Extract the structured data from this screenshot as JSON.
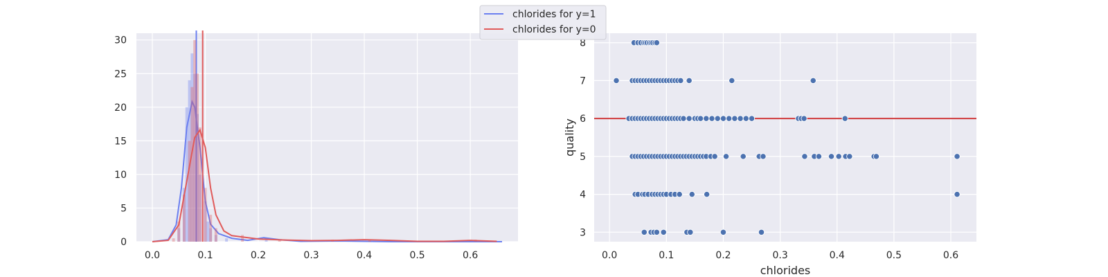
{
  "legend": {
    "placement": "top-center",
    "entries": [
      {
        "label": "chlorides for y=1",
        "color": "#6b7ff0"
      },
      {
        "label": "chlorides for y=0",
        "color": "#e05a5a"
      }
    ]
  },
  "chart_data": [
    {
      "type": "histogram",
      "title": "",
      "xlabel": "",
      "ylabel": "",
      "xlim": [
        -0.03,
        0.69
      ],
      "ylim": [
        0,
        31
      ],
      "xticks": [
        "0.0",
        "0.1",
        "0.2",
        "0.3",
        "0.4",
        "0.5",
        "0.6"
      ],
      "yticks": [
        "0",
        "5",
        "10",
        "15",
        "20",
        "25",
        "30"
      ],
      "grid": true,
      "background": "#eaeaf2",
      "series": [
        {
          "name": "chlorides for y=1",
          "color": "#6b7ff0",
          "mean_line": 0.083,
          "bars": [
            {
              "x": 0.05,
              "y": 2
            },
            {
              "x": 0.06,
              "y": 8
            },
            {
              "x": 0.065,
              "y": 20
            },
            {
              "x": 0.07,
              "y": 24
            },
            {
              "x": 0.075,
              "y": 28
            },
            {
              "x": 0.08,
              "y": 25
            },
            {
              "x": 0.085,
              "y": 19
            },
            {
              "x": 0.09,
              "y": 10
            },
            {
              "x": 0.1,
              "y": 6
            },
            {
              "x": 0.105,
              "y": 3
            },
            {
              "x": 0.11,
              "y": 2
            },
            {
              "x": 0.12,
              "y": 1
            },
            {
              "x": 0.14,
              "y": 0.5
            },
            {
              "x": 0.215,
              "y": 0.4
            }
          ],
          "kde": [
            [
              0.0,
              0
            ],
            [
              0.03,
              0.3
            ],
            [
              0.045,
              2.5
            ],
            [
              0.055,
              8
            ],
            [
              0.065,
              17
            ],
            [
              0.075,
              20.8
            ],
            [
              0.08,
              20
            ],
            [
              0.09,
              14
            ],
            [
              0.1,
              6
            ],
            [
              0.11,
              2.6
            ],
            [
              0.125,
              1.2
            ],
            [
              0.15,
              0.5
            ],
            [
              0.18,
              0.2
            ],
            [
              0.21,
              0.6
            ],
            [
              0.24,
              0.3
            ],
            [
              0.28,
              0.05
            ],
            [
              0.35,
              0.1
            ],
            [
              0.4,
              0.05
            ],
            [
              0.45,
              0
            ],
            [
              0.6,
              0
            ],
            [
              0.66,
              0
            ]
          ]
        },
        {
          "name": "chlorides for y=0",
          "color": "#e05a5a",
          "mean_line": 0.095,
          "bars": [
            {
              "x": 0.04,
              "y": 0.5
            },
            {
              "x": 0.05,
              "y": 3
            },
            {
              "x": 0.06,
              "y": 7
            },
            {
              "x": 0.07,
              "y": 15
            },
            {
              "x": 0.075,
              "y": 23
            },
            {
              "x": 0.08,
              "y": 30
            },
            {
              "x": 0.085,
              "y": 25
            },
            {
              "x": 0.09,
              "y": 17
            },
            {
              "x": 0.1,
              "y": 8
            },
            {
              "x": 0.11,
              "y": 4
            },
            {
              "x": 0.12,
              "y": 2
            },
            {
              "x": 0.17,
              "y": 1
            },
            {
              "x": 0.24,
              "y": 0.3
            },
            {
              "x": 0.34,
              "y": 0.3
            },
            {
              "x": 0.41,
              "y": 0.3
            },
            {
              "x": 0.61,
              "y": 0.3
            }
          ],
          "kde": [
            [
              0.0,
              0
            ],
            [
              0.03,
              0.2
            ],
            [
              0.05,
              2.5
            ],
            [
              0.065,
              9
            ],
            [
              0.08,
              15.5
            ],
            [
              0.09,
              16.6
            ],
            [
              0.1,
              14
            ],
            [
              0.11,
              8
            ],
            [
              0.12,
              4
            ],
            [
              0.135,
              1.6
            ],
            [
              0.15,
              0.9
            ],
            [
              0.17,
              0.7
            ],
            [
              0.2,
              0.4
            ],
            [
              0.25,
              0.25
            ],
            [
              0.3,
              0.15
            ],
            [
              0.35,
              0.2
            ],
            [
              0.4,
              0.3
            ],
            [
              0.45,
              0.2
            ],
            [
              0.5,
              0.05
            ],
            [
              0.55,
              0.05
            ],
            [
              0.6,
              0.2
            ],
            [
              0.65,
              0.05
            ]
          ]
        }
      ]
    },
    {
      "type": "scatter",
      "title": "",
      "xlabel": "chlorides",
      "ylabel": "quality",
      "xlim": [
        -0.027,
        0.645
      ],
      "ylim": [
        2.75,
        8.25
      ],
      "xticks": [
        "0.0",
        "0.1",
        "0.2",
        "0.3",
        "0.4",
        "0.5",
        "0.6"
      ],
      "yticks": [
        "3",
        "4",
        "5",
        "6",
        "7",
        "8"
      ],
      "grid": true,
      "background": "#eaeaf2",
      "point_color": "#4c72b0",
      "hline": {
        "y": 6,
        "color": "#d0393a"
      },
      "points": [
        {
          "quality": 8,
          "x": [
            0.043,
            0.05,
            0.055,
            0.06,
            0.063,
            0.066,
            0.07,
            0.073,
            0.076,
            0.08,
            0.083
          ]
        },
        {
          "quality": 7,
          "x": [
            0.012,
            0.04,
            0.045,
            0.05,
            0.055,
            0.06,
            0.065,
            0.07,
            0.075,
            0.08,
            0.085,
            0.09,
            0.095,
            0.1,
            0.105,
            0.11,
            0.115,
            0.12,
            0.125,
            0.14,
            0.215,
            0.358
          ]
        },
        {
          "quality": 6,
          "x": [
            0.034,
            0.04,
            0.045,
            0.05,
            0.055,
            0.06,
            0.065,
            0.07,
            0.075,
            0.08,
            0.085,
            0.09,
            0.095,
            0.1,
            0.105,
            0.11,
            0.115,
            0.12,
            0.125,
            0.13,
            0.14,
            0.15,
            0.155,
            0.16,
            0.17,
            0.18,
            0.19,
            0.2,
            0.21,
            0.22,
            0.23,
            0.24,
            0.25,
            0.332,
            0.337,
            0.342,
            0.414
          ]
        },
        {
          "quality": 5,
          "x": [
            0.04,
            0.045,
            0.05,
            0.055,
            0.06,
            0.065,
            0.07,
            0.075,
            0.08,
            0.085,
            0.09,
            0.095,
            0.1,
            0.105,
            0.11,
            0.115,
            0.12,
            0.125,
            0.13,
            0.135,
            0.14,
            0.145,
            0.15,
            0.155,
            0.16,
            0.165,
            0.17,
            0.178,
            0.185,
            0.205,
            0.235,
            0.263,
            0.27,
            0.343,
            0.36,
            0.368,
            0.39,
            0.403,
            0.415,
            0.422,
            0.465,
            0.469,
            0.611
          ]
        },
        {
          "quality": 4,
          "x": [
            0.045,
            0.05,
            0.058,
            0.062,
            0.068,
            0.075,
            0.08,
            0.085,
            0.09,
            0.095,
            0.1,
            0.108,
            0.115,
            0.123,
            0.145,
            0.171,
            0.611
          ]
        },
        {
          "quality": 3,
          "x": [
            0.061,
            0.073,
            0.078,
            0.083,
            0.095,
            0.136,
            0.142,
            0.2,
            0.267
          ]
        }
      ]
    }
  ]
}
